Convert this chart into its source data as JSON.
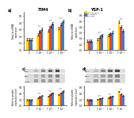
{
  "title_left": "TIM4",
  "title_right": "YSP-1",
  "legend_labels": [
    "HecAto(HES1)",
    "shp-GNMT1",
    "shp-HES1"
  ],
  "legend_colors": [
    "#FFD700",
    "#E8413C",
    "#3A7DC9"
  ],
  "xticklabels": [
    "C",
    "T 10⁻⁷",
    "T 10⁻⁶",
    "T 10⁻⁵"
  ],
  "panel_a_ylabel": "Relative mRNA\nexpression",
  "panel_b_ylabel": "Relative mRNA\nexpression",
  "panel_c_ylabel": "Relative protein\nexpression level",
  "panel_d_ylabel": "Relative protein\nexpression level",
  "panel_a_data": {
    "yellow": [
      0.15,
      0.22,
      0.28,
      0.32
    ],
    "red": [
      0.15,
      0.27,
      0.34,
      0.37
    ],
    "blue": [
      0.15,
      0.3,
      0.38,
      0.42
    ]
  },
  "panel_b_data": {
    "yellow": [
      0.15,
      0.18,
      0.25,
      0.48
    ],
    "red": [
      0.15,
      0.22,
      0.28,
      0.4
    ],
    "blue": [
      0.15,
      0.25,
      0.3,
      0.33
    ]
  },
  "panel_c_data": {
    "yellow": [
      0.18,
      0.24,
      0.3,
      0.35
    ],
    "red": [
      0.18,
      0.28,
      0.36,
      0.4
    ],
    "blue": [
      0.18,
      0.32,
      0.4,
      0.46
    ]
  },
  "panel_d_data": {
    "yellow": [
      0.18,
      0.2,
      0.25,
      0.45
    ],
    "red": [
      0.18,
      0.22,
      0.28,
      0.37
    ],
    "blue": [
      0.18,
      0.24,
      0.3,
      0.32
    ]
  },
  "panel_a_ylim": [
    0,
    0.55
  ],
  "panel_b_ylim": [
    0,
    0.65
  ],
  "panel_c_ylim": [
    0,
    0.6
  ],
  "panel_d_ylim": [
    0,
    0.6
  ],
  "wb_lines_c": [
    "TIM4",
    "HES1",
    "β-actin"
  ],
  "wb_lines_d": [
    "YSP-1",
    "HES1",
    "β-actin"
  ],
  "background_color": "#FFFFFF",
  "bar_width": 0.2,
  "errorbar_capsize": 1.0,
  "errorbar_values": 0.018
}
